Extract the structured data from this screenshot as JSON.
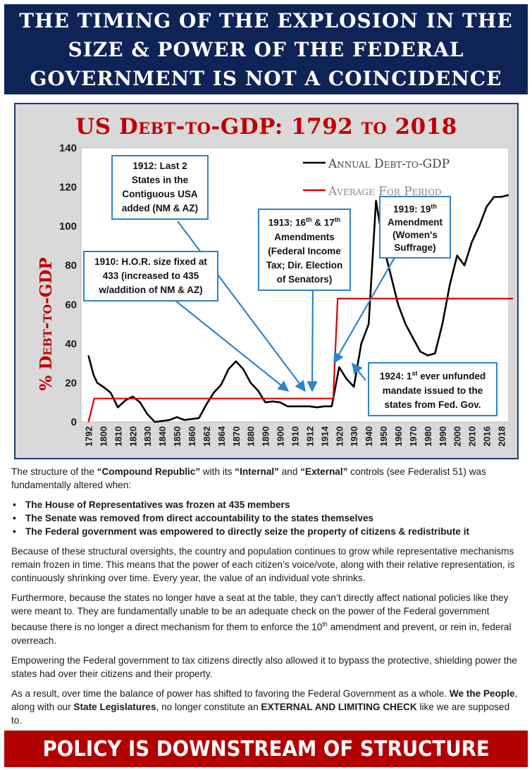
{
  "header": {
    "title": "THE TIMING OF THE EXPLOSION IN THE SIZE & POWER OF THE FEDERAL GOVERNMENT IS NOT A COINCIDENCE"
  },
  "chart_data": {
    "type": "line",
    "title": "US Debt-to-GDP: 1792 to 2018",
    "ylabel": "% Debt-to-GDP",
    "xlabel": "",
    "ylim": [
      0,
      140
    ],
    "yticks": [
      0,
      20,
      40,
      60,
      80,
      100,
      120,
      140
    ],
    "categories": [
      "1792",
      "1800",
      "1810",
      "1820",
      "1830",
      "1840",
      "1850",
      "1860",
      "1862",
      "1864",
      "1870",
      "1880",
      "1890",
      "1900",
      "1910",
      "1912",
      "1914",
      "1920",
      "1930",
      "1940",
      "1950",
      "1960",
      "1970",
      "1980",
      "1990",
      "2000",
      "2010",
      "2016",
      "2018"
    ],
    "legend_position": "top-right",
    "grid": false,
    "series": [
      {
        "name": "Annual Debt-to-GDP",
        "color": "#000000",
        "points": [
          [
            0,
            34
          ],
          [
            0.35,
            24
          ],
          [
            0.6,
            20
          ],
          [
            1,
            18
          ],
          [
            1.5,
            15
          ],
          [
            2,
            7.5
          ],
          [
            2.5,
            11
          ],
          [
            3,
            13
          ],
          [
            3.5,
            10
          ],
          [
            4,
            4
          ],
          [
            4.5,
            0
          ],
          [
            5,
            0.5
          ],
          [
            5.5,
            1
          ],
          [
            6,
            2.5
          ],
          [
            6.5,
            1
          ],
          [
            7,
            1.5
          ],
          [
            7.5,
            2
          ],
          [
            8,
            9
          ],
          [
            8.5,
            15
          ],
          [
            9,
            19
          ],
          [
            9.5,
            27
          ],
          [
            10,
            31
          ],
          [
            10.5,
            27
          ],
          [
            11,
            20
          ],
          [
            11.5,
            16
          ],
          [
            12,
            10
          ],
          [
            12.5,
            10.5
          ],
          [
            13,
            10
          ],
          [
            13.5,
            8
          ],
          [
            14,
            8
          ],
          [
            14.5,
            8
          ],
          [
            15,
            8
          ],
          [
            15.5,
            7.5
          ],
          [
            16,
            8
          ],
          [
            16.5,
            8
          ],
          [
            17,
            28
          ],
          [
            17.5,
            22
          ],
          [
            18,
            18
          ],
          [
            18.5,
            40
          ],
          [
            19,
            50
          ],
          [
            19.5,
            113
          ],
          [
            20,
            90
          ],
          [
            20.5,
            75
          ],
          [
            21,
            60
          ],
          [
            21.5,
            50
          ],
          [
            22,
            43
          ],
          [
            22.5,
            36
          ],
          [
            23,
            34
          ],
          [
            23.5,
            35
          ],
          [
            24,
            50
          ],
          [
            24.5,
            70
          ],
          [
            25,
            85
          ],
          [
            25.5,
            80
          ],
          [
            26,
            92
          ],
          [
            26.5,
            100
          ],
          [
            27,
            110
          ],
          [
            27.5,
            115
          ],
          [
            28,
            115
          ],
          [
            28.5,
            116
          ]
        ]
      },
      {
        "name": "Average For Period",
        "color": "#e00000",
        "points": [
          [
            0,
            0
          ],
          [
            0.4,
            12
          ],
          [
            16.6,
            12
          ],
          [
            16.9,
            63
          ],
          [
            28.8,
            63
          ]
        ]
      }
    ],
    "annotations": [
      {
        "id": "a1910",
        "text": "1910: H.O.R. size fixed at 433 (increased to 435 w/addition of NM & AZ)"
      },
      {
        "id": "a1912",
        "text": "1912: Last 2 States in the Contiguous USA added (NM & AZ)"
      },
      {
        "id": "a1913",
        "text": "1913: 16th & 17th Amendments (Federal Income Tax; Dir. Election of Senators)"
      },
      {
        "id": "a1919",
        "text": "1919: 19th Amendment (Women's Suffrage)"
      },
      {
        "id": "a1924",
        "text": "1924: 1st ever unfunded mandate issued to the states from Fed. Gov."
      }
    ]
  },
  "callouts": {
    "c1910_line1": "1910: H.O.R. size fixed at",
    "c1910_line2": "433 (increased to 435",
    "c1910_line3": "w/addition of NM & AZ)",
    "c1912_line1": "1912: Last 2",
    "c1912_line2": "States in the",
    "c1912_line3": "Contiguous USA",
    "c1912_line4": "added (NM & AZ)",
    "c1913_pre": "1913: 16",
    "c1913_sup1": "th",
    "c1913_mid": " & 17",
    "c1913_sup2": "th",
    "c1913_line2": "Amendments",
    "c1913_line3": "(Federal Income",
    "c1913_line4": "Tax; Dir. Election",
    "c1913_line5": "of Senators)",
    "c1919_pre": "1919: 19",
    "c1919_sup": "th",
    "c1919_line2": "Amendment",
    "c1919_line3": "(Women's",
    "c1919_line4": "Suffrage)",
    "c1924_pre": "1924: 1",
    "c1924_sup": "st",
    "c1924_post": " ever unfunded",
    "c1924_line2": "mandate issued to the",
    "c1924_line3": "states from Fed. Gov."
  },
  "body": {
    "intro_1": "The structure of the ",
    "intro_b1": "“Compound Republic”",
    "intro_2": " with its ",
    "intro_b2": "“Internal”",
    "intro_3": " and ",
    "intro_b3": "“External”",
    "intro_4": " controls (see Federalist 51) was fundamentally altered when:",
    "bullets": [
      "The House of Representatives was frozen at 435 members",
      "The Senate was removed from direct accountability to the states themselves",
      "The Federal government was empowered to directly seize the property of citizens & redistribute it"
    ],
    "para1": "Because of these structural oversights, the country and population continues to grow while representative mechanisms remain frozen in time. This means that the power of each citizen’s voice/vote, along with their relative representation, is continuously shrinking over time. Every year, the value of an individual vote shrinks.",
    "para2_a": "Furthermore, because the states no longer have a seat at the table, they can’t directly affect national policies like they were meant to. They are fundamentally unable to be an adequate check on the power of the Federal government because there is no longer a direct mechanism for them to enforce the 10",
    "para2_sup": "th",
    "para2_b": " amendment and prevent, or rein in, federal overreach.",
    "para3": "Empowering the Federal government to tax citizens directly also allowed it to bypass the protective, shielding power the states had over their citizens and their property.",
    "para4_a": "As a result, over time the balance of power has shifted to favoring the Federal Government as a whole. ",
    "para4_b1": "We the People",
    "para4_c": ", along with our ",
    "para4_b2": "State Legislatures",
    "para4_d": ", no longer constitute an ",
    "para4_b3": "EXTERNAL AND LIMITING CHECK",
    "para4_e": " like we are supposed to."
  },
  "footer": {
    "banner": "POLICY IS DOWNSTREAM OF STRUCTURE"
  }
}
